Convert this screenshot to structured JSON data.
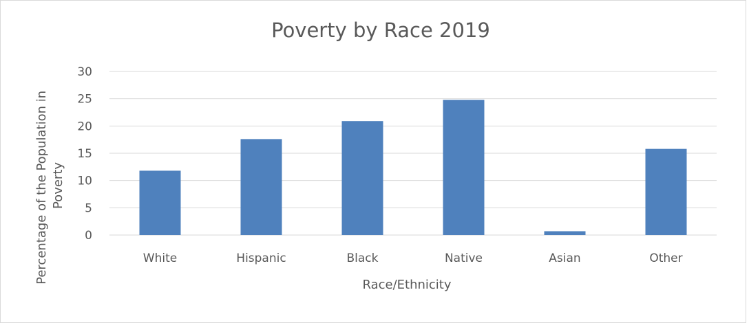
{
  "chart_data": {
    "type": "bar",
    "title": "Poverty by Race 2019",
    "xlabel": "Race/Ethnicity",
    "ylabel_lines": [
      "Percentage of the Population in",
      "Poverty"
    ],
    "categories": [
      "White",
      "Hispanic",
      "Black",
      "Native",
      "Asian",
      "Other"
    ],
    "values": [
      11.8,
      17.6,
      20.9,
      24.8,
      0.7,
      15.8
    ],
    "ylim": [
      0,
      30
    ],
    "yticks": [
      0,
      5,
      10,
      15,
      20,
      25,
      30
    ],
    "grid": true,
    "legend": "none",
    "colors": {
      "bar": "#4f81bd",
      "grid": "#d9d9d9",
      "text": "#595959"
    }
  }
}
